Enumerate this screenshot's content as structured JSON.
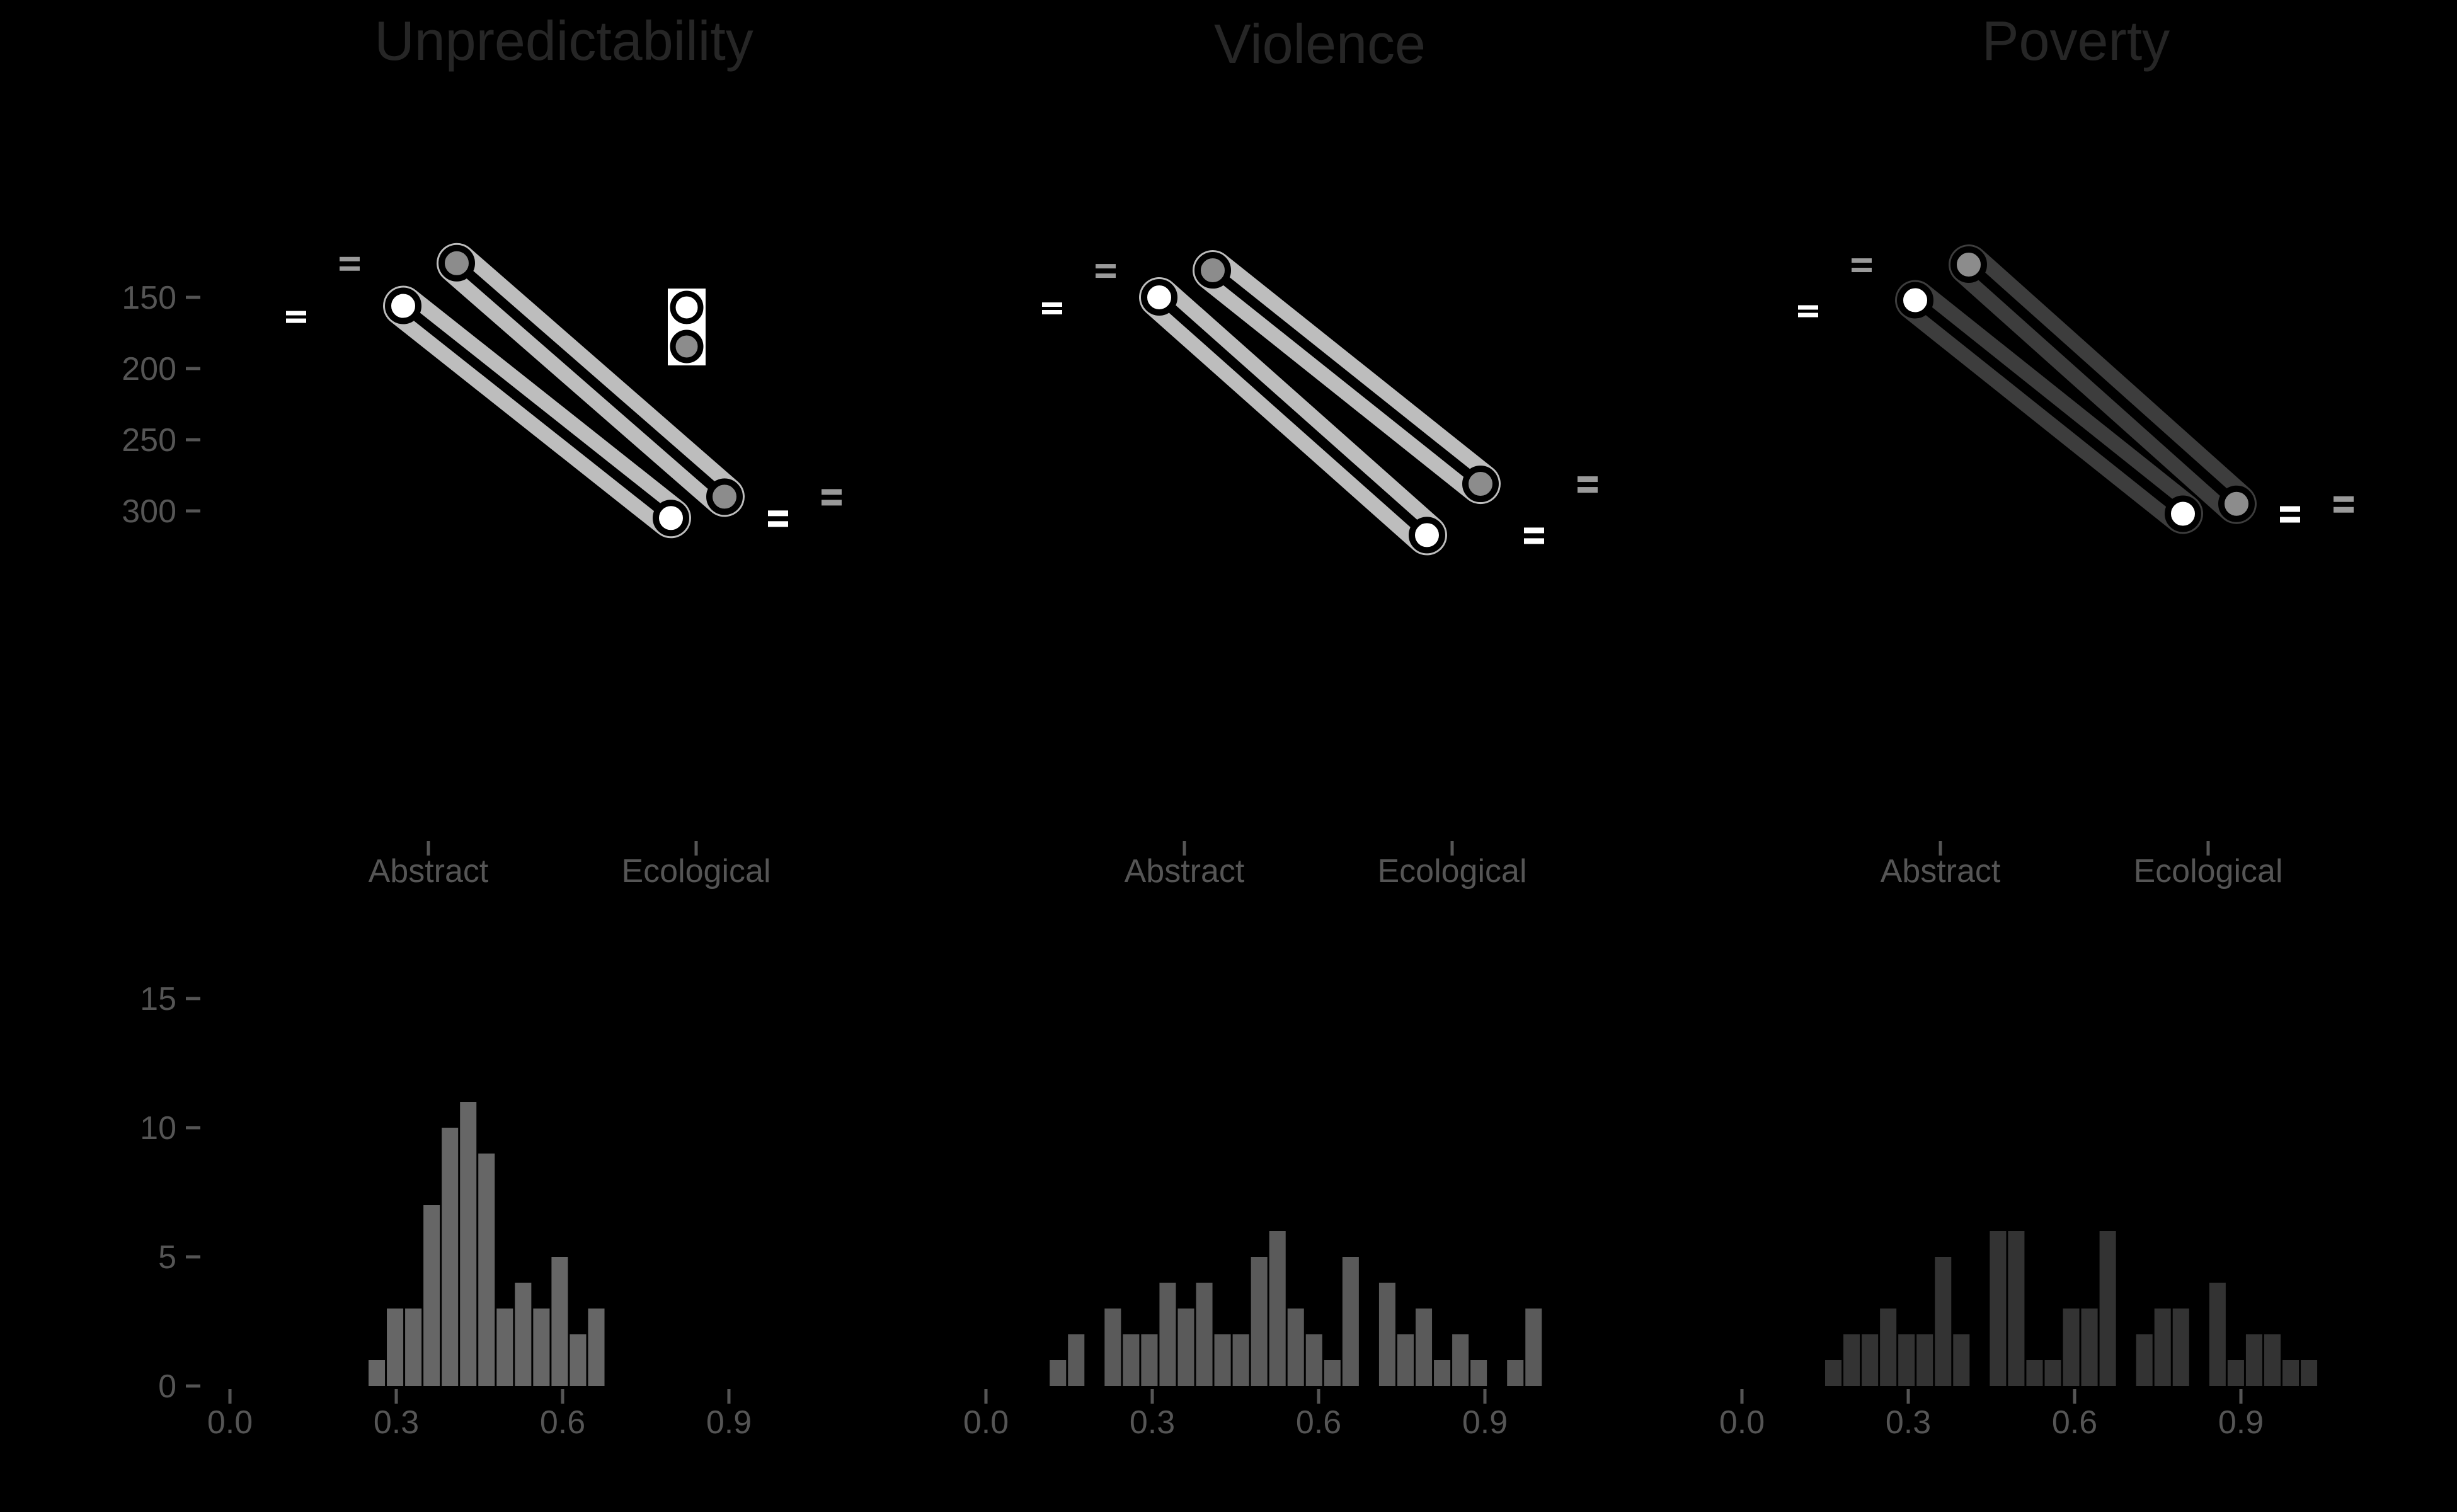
{
  "chart_data": [
    {
      "type": "line",
      "title": "Unpredictability",
      "categories": [
        "Abstract",
        "Ecological"
      ],
      "y_ticks": [
        150,
        200,
        250,
        300
      ],
      "ylim": [
        105,
        340
      ],
      "y_reversed": true,
      "legend": "inset-box",
      "series": [
        {
          "values": [
            156,
            305
          ],
          "color": "#ffffff"
        },
        {
          "values": [
            126,
            290
          ],
          "color": "#8c8c8c"
        }
      ]
    },
    {
      "type": "line",
      "title": "Violence",
      "categories": [
        "Abstract",
        "Ecological"
      ],
      "y_ticks": [
        150,
        200,
        250,
        300
      ],
      "ylim": [
        105,
        340
      ],
      "y_reversed": true,
      "series": [
        {
          "values": [
            150,
            317
          ],
          "color": "#ffffff"
        },
        {
          "values": [
            131,
            281
          ],
          "color": "#8c8c8c"
        }
      ]
    },
    {
      "type": "line",
      "title": "Poverty",
      "categories": [
        "Abstract",
        "Ecological"
      ],
      "y_ticks": [
        150,
        200,
        250,
        300
      ],
      "ylim": [
        105,
        340
      ],
      "y_reversed": true,
      "series": [
        {
          "values": [
            152,
            302
          ],
          "color": "#ffffff"
        },
        {
          "values": [
            127,
            295
          ],
          "color": "#8c8c8c"
        }
      ]
    },
    {
      "type": "bar",
      "x_start": 0.25,
      "bin_width": 0.033,
      "values": [
        1,
        3,
        3,
        7,
        10,
        11,
        9,
        3,
        4,
        3,
        5,
        2,
        3
      ],
      "x_ticks": [
        "0.0",
        "0.3",
        "0.6",
        "0.9"
      ],
      "xlim": [
        0.0,
        1.0
      ],
      "y_ticks": [
        0,
        5,
        10,
        15
      ],
      "ylim": [
        0,
        15
      ],
      "color": "#666666"
    },
    {
      "type": "bar",
      "x_start": 0.115,
      "bin_width": 0.033,
      "values": [
        1,
        2,
        0,
        3,
        2,
        2,
        4,
        3,
        4,
        2,
        2,
        5,
        6,
        3,
        2,
        1,
        5,
        0,
        4,
        2,
        3,
        1,
        2,
        1,
        0,
        1,
        3
      ],
      "x_ticks": [
        "0.0",
        "0.3",
        "0.6",
        "0.9"
      ],
      "xlim": [
        0.0,
        1.0
      ],
      "y_ticks": [
        0,
        5,
        10,
        15
      ],
      "ylim": [
        0,
        15
      ],
      "color": "#5a5a5a"
    },
    {
      "type": "bar",
      "x_start": 0.15,
      "bin_width": 0.033,
      "values": [
        1,
        2,
        2,
        3,
        2,
        2,
        5,
        2,
        0,
        6,
        6,
        1,
        1,
        3,
        3,
        6,
        0,
        2,
        3,
        3,
        0,
        4,
        1,
        2,
        2,
        1,
        1
      ],
      "x_ticks": [
        "0.0",
        "0.3",
        "0.6",
        "0.9"
      ],
      "xlim": [
        0.0,
        1.0
      ],
      "y_ticks": [
        0,
        5,
        10,
        15
      ],
      "ylim": [
        0,
        15
      ],
      "color": "#333333"
    }
  ]
}
